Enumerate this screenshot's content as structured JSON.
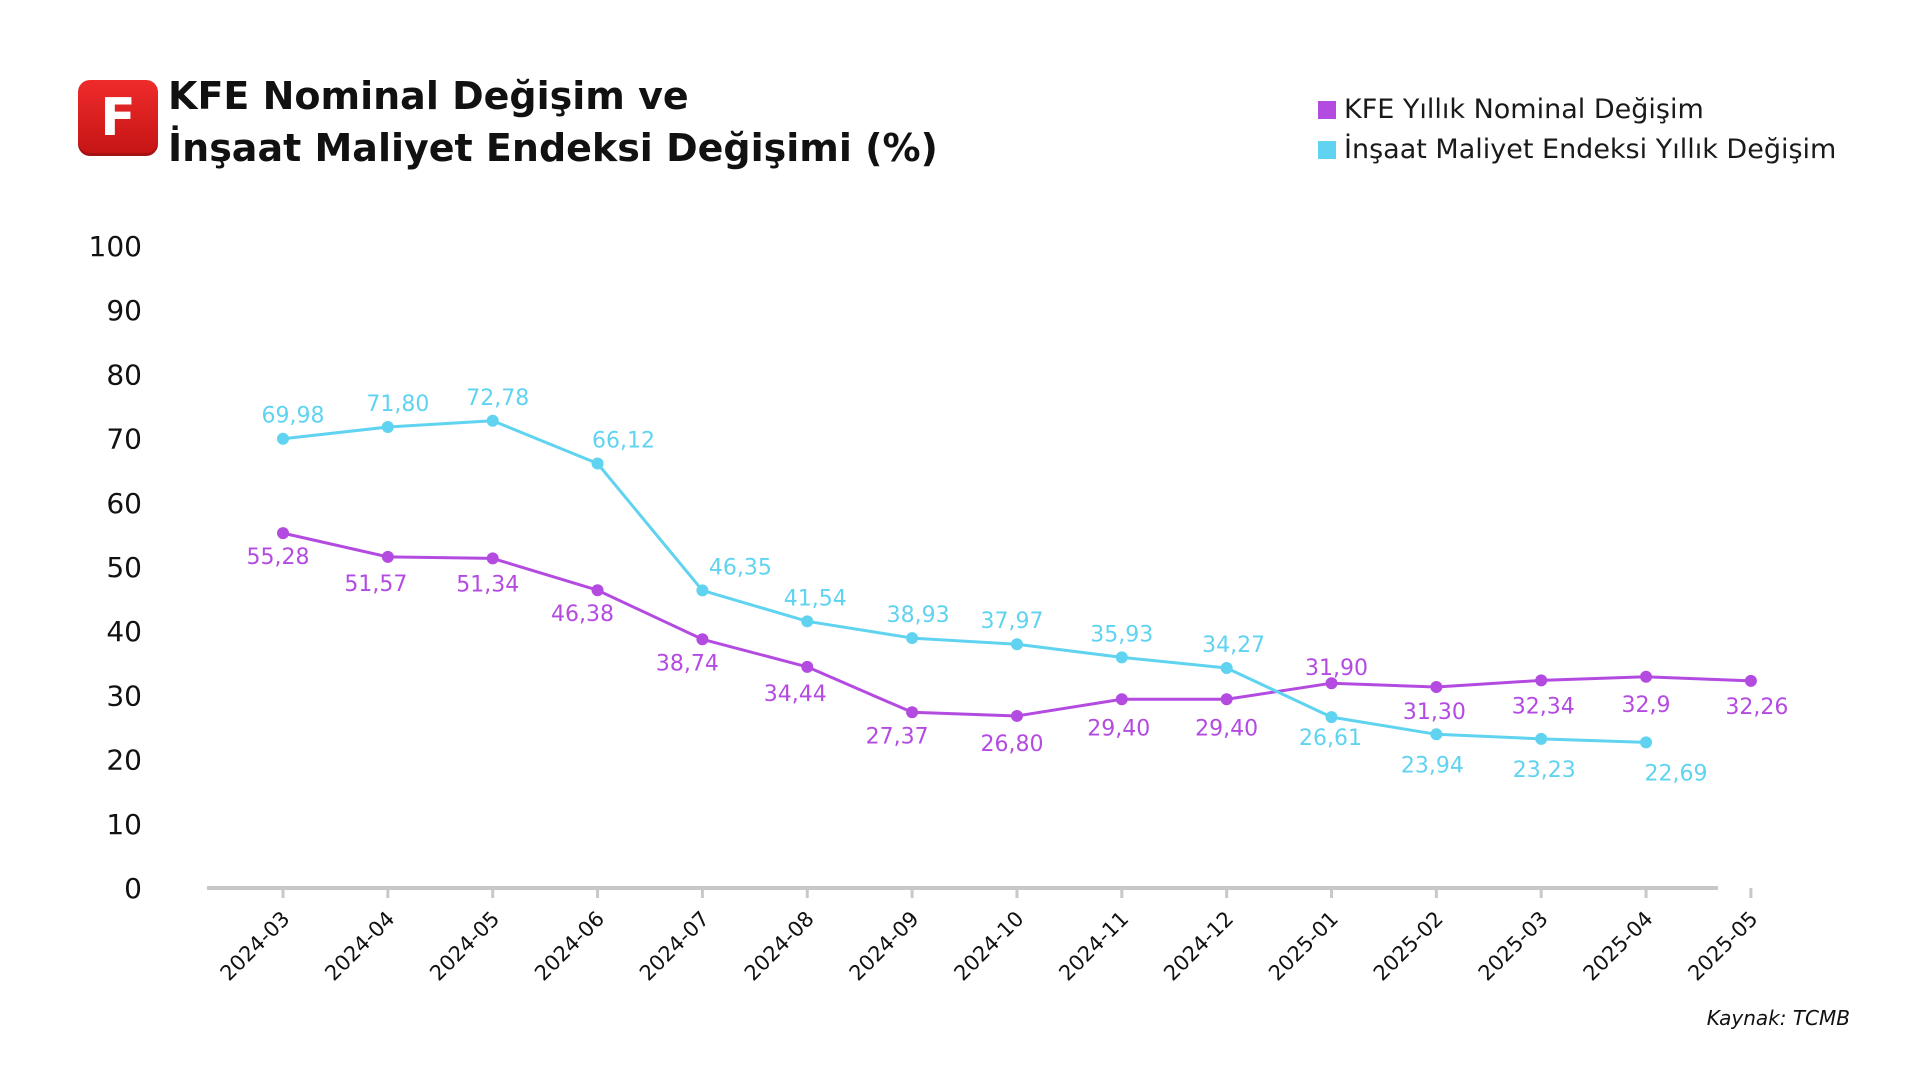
{
  "logo": {
    "letter": "F",
    "color": "#d81e1e"
  },
  "header": {
    "title_line1": "KFE Nominal Değişim ve",
    "title_line2": "İnşaat Maliyet Endeksi Değişimi (%)"
  },
  "source": "Kaynak: TCMB",
  "chart_data": {
    "type": "line",
    "title": "KFE Nominal Değişim ve İnşaat Maliyet Endeksi Değişimi (%)",
    "xlabel": "",
    "ylabel": "",
    "ylim": [
      0,
      100
    ],
    "yticks": [
      "0",
      "10",
      "20",
      "30",
      "40",
      "50",
      "60",
      "70",
      "80",
      "90",
      "100"
    ],
    "grid": false,
    "legend_position": "top-right",
    "categories": [
      "2024-03",
      "2024-04",
      "2024-05",
      "2024-06",
      "2024-07",
      "2024-08",
      "2024-09",
      "2024-10",
      "2024-11",
      "2024-12",
      "2025-01",
      "2025-02",
      "2025-03",
      "2025-04",
      "2025-05"
    ],
    "series": [
      {
        "name": "KFE Yıllık Nominal Değişim",
        "color": "#b44be1",
        "values": [
          55.28,
          51.57,
          51.34,
          46.38,
          38.74,
          34.44,
          27.37,
          26.8,
          29.4,
          29.4,
          31.9,
          31.3,
          32.34,
          32.9,
          32.26
        ],
        "labels": [
          "55,28",
          "51,57",
          "51,34",
          "46,38",
          "38,74",
          "34,44",
          "27,37",
          "26,80",
          "29,40",
          "29,40",
          "31,90",
          "31,30",
          "32,34",
          "32,9",
          "32,26"
        ]
      },
      {
        "name": "İnşaat Maliyet Endeksi Yıllık Değişim",
        "color": "#5fd3f0",
        "values": [
          69.98,
          71.8,
          72.78,
          66.12,
          46.35,
          41.54,
          38.93,
          37.97,
          35.93,
          34.27,
          26.61,
          23.94,
          23.23,
          22.69,
          null
        ],
        "labels": [
          "69,98",
          "71,80",
          "72,78",
          "66,12",
          "46,35",
          "41,54",
          "38,93",
          "37,97",
          "35,93",
          "34,27",
          "26,61",
          "23,94",
          "23,23",
          "22,69",
          ""
        ]
      }
    ]
  }
}
